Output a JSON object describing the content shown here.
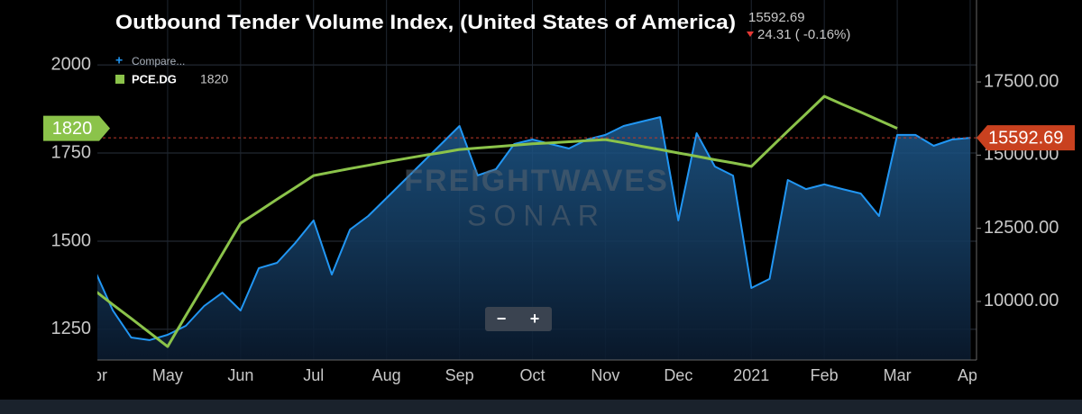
{
  "chart_data": {
    "type": "line",
    "title": "Outbound Tender Volume Index, (United States of America)",
    "header_value": 15592.69,
    "change": "24.31 ( -0.16%)",
    "compare_label": "Compare...",
    "watermark": [
      "FREIGHTWAVES",
      "SONAR"
    ],
    "zoom_buttons": [
      "−",
      "+"
    ],
    "categories": [
      "Apr",
      null,
      null,
      null,
      "May",
      null,
      null,
      null,
      "Jun",
      null,
      null,
      null,
      "Jul",
      null,
      null,
      null,
      "Aug",
      null,
      null,
      null,
      "Sep",
      null,
      null,
      null,
      "Oct",
      null,
      null,
      null,
      "Nov",
      null,
      null,
      null,
      "Dec",
      null,
      null,
      null,
      "2021",
      null,
      null,
      null,
      "Feb",
      null,
      null,
      null,
      "Mar",
      null,
      null,
      null,
      "Apr"
    ],
    "series": [
      {
        "color": "#2196f3",
        "axis": "y2",
        "values": [
          11075,
          9690,
          8770,
          8680,
          8860,
          9170,
          9845,
          10300,
          9690,
          11140,
          11320,
          12000,
          12770,
          10920,
          12460,
          12920,
          13535,
          14150,
          14765,
          15380,
          15995,
          14310,
          14520,
          15380,
          15535,
          15380,
          15225,
          15535,
          15690,
          15995,
          16150,
          16300,
          12770,
          15750,
          14610,
          14300,
          10460,
          10770,
          14150,
          13840,
          14000,
          13840,
          13690,
          12920,
          15690,
          15690,
          15320,
          15535,
          15592.69
        ]
      },
      {
        "name": "PCE.DG",
        "color": "#8bc34a",
        "values": [
          1360,
          1320,
          1281,
          1241,
          1201,
          1289,
          1376,
          1464,
          1551,
          1585,
          1619,
          1652,
          1686,
          1696,
          1706,
          1715,
          1725,
          1734,
          1743,
          1751,
          1760,
          1764,
          1768,
          1772,
          1776,
          1779,
          1782,
          1785,
          1788,
          1779,
          1769,
          1760,
          1750,
          1741,
          1731,
          1722,
          1712,
          1762,
          1812,
          1861,
          1911,
          1888,
          1866,
          1843,
          1820,
          null,
          null,
          null,
          null
        ]
      }
    ],
    "ylim": [
      1163,
      2184
    ],
    "yticks": [
      1250,
      1500,
      1750,
      2000
    ],
    "y2lim": [
      8000,
      20300
    ],
    "y2ticks": [
      {
        "value": 10000,
        "label": "10000.00"
      },
      {
        "value": 12500,
        "label": "12500.00"
      },
      {
        "value": 15000,
        "label": "15000.00"
      },
      {
        "value": 17500,
        "label": "17500.00"
      }
    ],
    "grid": true
  }
}
